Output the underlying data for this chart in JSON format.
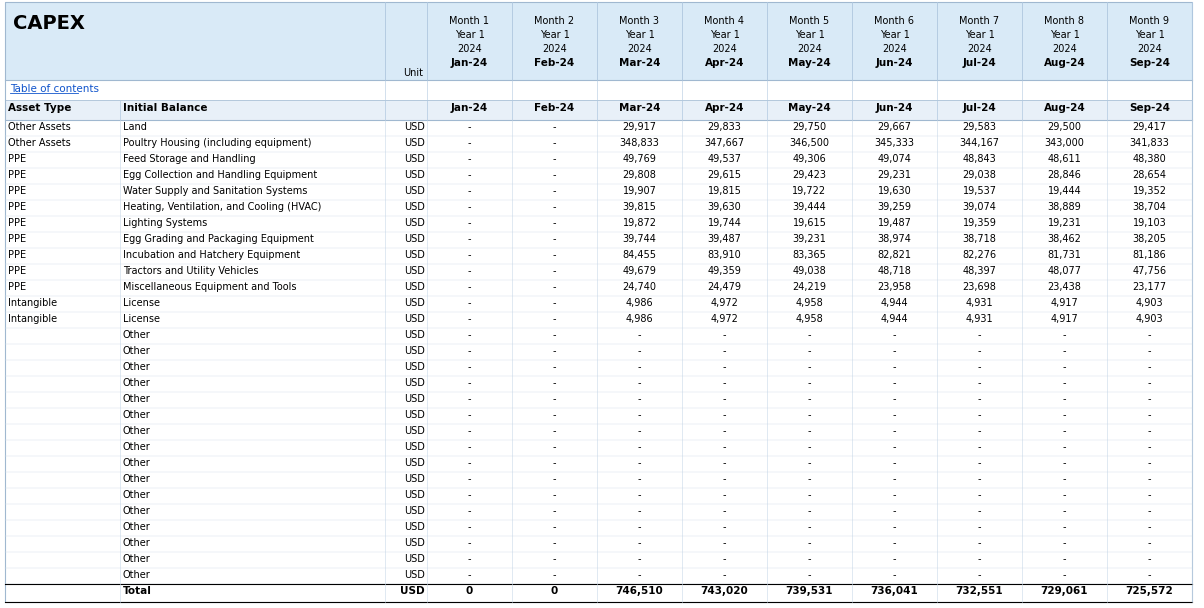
{
  "title": "CAPEX",
  "table_of_contents": "Table of contents",
  "header_bg": "#ddeeff",
  "subheader_bg": "#f0f8ff",
  "col_header_bg": "#e8f0f8",
  "total_row_bg": "#ffffff",
  "months": [
    "Month 1",
    "Month 2",
    "Month 3",
    "Month 4",
    "Month 5",
    "Month 6",
    "Month 7",
    "Month 8",
    "Month 9"
  ],
  "years": [
    "Year 1",
    "Year 1",
    "Year 1",
    "Year 1",
    "Year 1",
    "Year 1",
    "Year 1",
    "Year 1",
    "Year 1"
  ],
  "year_nums": [
    "2024",
    "2024",
    "2024",
    "2024",
    "2024",
    "2024",
    "2024",
    "2024",
    "2024"
  ],
  "month_labels": [
    "Jan-24",
    "Feb-24",
    "Mar-24",
    "Apr-24",
    "May-24",
    "Jun-24",
    "Jul-24",
    "Aug-24",
    "Sep-24"
  ],
  "col_headers": [
    "Asset Type",
    "Initial Balance",
    "Unit"
  ],
  "rows": [
    {
      "asset_type": "Other Assets",
      "initial_balance": "Land",
      "unit": "USD",
      "values": [
        "-",
        "-",
        "29,917",
        "29,833",
        "29,750",
        "29,667",
        "29,583",
        "29,500",
        "29,417"
      ]
    },
    {
      "asset_type": "Other Assets",
      "initial_balance": "Poultry Housing (including equipment)",
      "unit": "USD",
      "values": [
        "-",
        "-",
        "348,833",
        "347,667",
        "346,500",
        "345,333",
        "344,167",
        "343,000",
        "341,833"
      ]
    },
    {
      "asset_type": "PPE",
      "initial_balance": "Feed Storage and Handling",
      "unit": "USD",
      "values": [
        "-",
        "-",
        "49,769",
        "49,537",
        "49,306",
        "49,074",
        "48,843",
        "48,611",
        "48,380"
      ]
    },
    {
      "asset_type": "PPE",
      "initial_balance": "Egg Collection and Handling Equipment",
      "unit": "USD",
      "values": [
        "-",
        "-",
        "29,808",
        "29,615",
        "29,423",
        "29,231",
        "29,038",
        "28,846",
        "28,654"
      ]
    },
    {
      "asset_type": "PPE",
      "initial_balance": "Water Supply and Sanitation Systems",
      "unit": "USD",
      "values": [
        "-",
        "-",
        "19,907",
        "19,815",
        "19,722",
        "19,630",
        "19,537",
        "19,444",
        "19,352"
      ]
    },
    {
      "asset_type": "PPE",
      "initial_balance": "Heating, Ventilation, and Cooling (HVAC)",
      "unit": "USD",
      "values": [
        "-",
        "-",
        "39,815",
        "39,630",
        "39,444",
        "39,259",
        "39,074",
        "38,889",
        "38,704"
      ]
    },
    {
      "asset_type": "PPE",
      "initial_balance": "Lighting Systems",
      "unit": "USD",
      "values": [
        "-",
        "-",
        "19,872",
        "19,744",
        "19,615",
        "19,487",
        "19,359",
        "19,231",
        "19,103"
      ]
    },
    {
      "asset_type": "PPE",
      "initial_balance": "Egg Grading and Packaging Equipment",
      "unit": "USD",
      "values": [
        "-",
        "-",
        "39,744",
        "39,487",
        "39,231",
        "38,974",
        "38,718",
        "38,462",
        "38,205"
      ]
    },
    {
      "asset_type": "PPE",
      "initial_balance": "Incubation and Hatchery Equipment",
      "unit": "USD",
      "values": [
        "-",
        "-",
        "84,455",
        "83,910",
        "83,365",
        "82,821",
        "82,276",
        "81,731",
        "81,186"
      ]
    },
    {
      "asset_type": "PPE",
      "initial_balance": "Tractors and Utility Vehicles",
      "unit": "USD",
      "values": [
        "-",
        "-",
        "49,679",
        "49,359",
        "49,038",
        "48,718",
        "48,397",
        "48,077",
        "47,756"
      ]
    },
    {
      "asset_type": "PPE",
      "initial_balance": "Miscellaneous Equipment and Tools",
      "unit": "USD",
      "values": [
        "-",
        "-",
        "24,740",
        "24,479",
        "24,219",
        "23,958",
        "23,698",
        "23,438",
        "23,177"
      ]
    },
    {
      "asset_type": "Intangible",
      "initial_balance": "License",
      "unit": "USD",
      "values": [
        "-",
        "-",
        "4,986",
        "4,972",
        "4,958",
        "4,944",
        "4,931",
        "4,917",
        "4,903"
      ]
    },
    {
      "asset_type": "Intangible",
      "initial_balance": "License",
      "unit": "USD",
      "values": [
        "-",
        "-",
        "4,986",
        "4,972",
        "4,958",
        "4,944",
        "4,931",
        "4,917",
        "4,903"
      ]
    },
    {
      "asset_type": "",
      "initial_balance": "Other",
      "unit": "USD",
      "values": [
        "-",
        "-",
        "-",
        "-",
        "-",
        "-",
        "-",
        "-",
        "-"
      ]
    },
    {
      "asset_type": "",
      "initial_balance": "Other",
      "unit": "USD",
      "values": [
        "-",
        "-",
        "-",
        "-",
        "-",
        "-",
        "-",
        "-",
        "-"
      ]
    },
    {
      "asset_type": "",
      "initial_balance": "Other",
      "unit": "USD",
      "values": [
        "-",
        "-",
        "-",
        "-",
        "-",
        "-",
        "-",
        "-",
        "-"
      ]
    },
    {
      "asset_type": "",
      "initial_balance": "Other",
      "unit": "USD",
      "values": [
        "-",
        "-",
        "-",
        "-",
        "-",
        "-",
        "-",
        "-",
        "-"
      ]
    },
    {
      "asset_type": "",
      "initial_balance": "Other",
      "unit": "USD",
      "values": [
        "-",
        "-",
        "-",
        "-",
        "-",
        "-",
        "-",
        "-",
        "-"
      ]
    },
    {
      "asset_type": "",
      "initial_balance": "Other",
      "unit": "USD",
      "values": [
        "-",
        "-",
        "-",
        "-",
        "-",
        "-",
        "-",
        "-",
        "-"
      ]
    },
    {
      "asset_type": "",
      "initial_balance": "Other",
      "unit": "USD",
      "values": [
        "-",
        "-",
        "-",
        "-",
        "-",
        "-",
        "-",
        "-",
        "-"
      ]
    },
    {
      "asset_type": "",
      "initial_balance": "Other",
      "unit": "USD",
      "values": [
        "-",
        "-",
        "-",
        "-",
        "-",
        "-",
        "-",
        "-",
        "-"
      ]
    },
    {
      "asset_type": "",
      "initial_balance": "Other",
      "unit": "USD",
      "values": [
        "-",
        "-",
        "-",
        "-",
        "-",
        "-",
        "-",
        "-",
        "-"
      ]
    },
    {
      "asset_type": "",
      "initial_balance": "Other",
      "unit": "USD",
      "values": [
        "-",
        "-",
        "-",
        "-",
        "-",
        "-",
        "-",
        "-",
        "-"
      ]
    },
    {
      "asset_type": "",
      "initial_balance": "Other",
      "unit": "USD",
      "values": [
        "-",
        "-",
        "-",
        "-",
        "-",
        "-",
        "-",
        "-",
        "-"
      ]
    },
    {
      "asset_type": "",
      "initial_balance": "Other",
      "unit": "USD",
      "values": [
        "-",
        "-",
        "-",
        "-",
        "-",
        "-",
        "-",
        "-",
        "-"
      ]
    },
    {
      "asset_type": "",
      "initial_balance": "Other",
      "unit": "USD",
      "values": [
        "-",
        "-",
        "-",
        "-",
        "-",
        "-",
        "-",
        "-",
        "-"
      ]
    },
    {
      "asset_type": "",
      "initial_balance": "Other",
      "unit": "USD",
      "values": [
        "-",
        "-",
        "-",
        "-",
        "-",
        "-",
        "-",
        "-",
        "-"
      ]
    },
    {
      "asset_type": "",
      "initial_balance": "Other",
      "unit": "USD",
      "values": [
        "-",
        "-",
        "-",
        "-",
        "-",
        "-",
        "-",
        "-",
        "-"
      ]
    },
    {
      "asset_type": "",
      "initial_balance": "Other",
      "unit": "USD",
      "values": [
        "-",
        "-",
        "-",
        "-",
        "-",
        "-",
        "-",
        "-",
        "-"
      ]
    }
  ],
  "total_row": {
    "label": "Total",
    "unit": "USD",
    "values": [
      "0",
      "0",
      "746,510",
      "743,020",
      "739,531",
      "736,041",
      "732,551",
      "729,061",
      "725,572"
    ]
  }
}
